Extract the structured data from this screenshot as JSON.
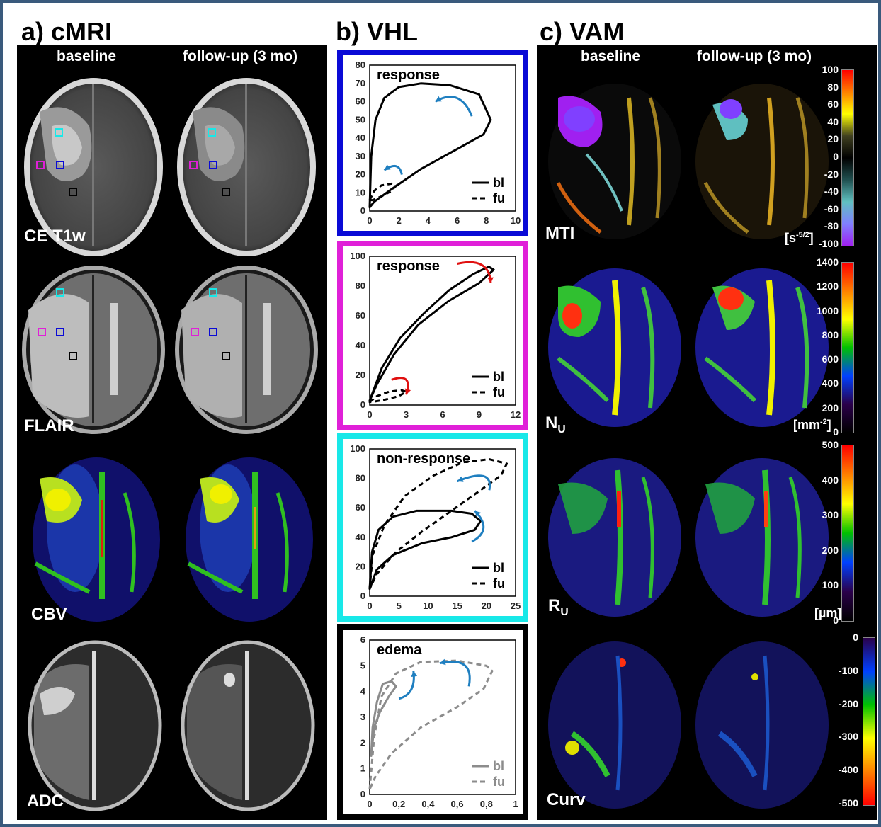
{
  "panels": {
    "a_title": "a) cMRI",
    "b_title": "b) VHL",
    "c_title": "c) VAM"
  },
  "cmri": {
    "col_baseline": "baseline",
    "col_followup": "follow-up (3 mo)",
    "rows": [
      "CE T1w",
      "FLAIR",
      "CBV",
      "ADC"
    ]
  },
  "vam": {
    "col_baseline": "baseline",
    "col_followup": "follow-up (3 mo)",
    "rows": [
      {
        "label": "MTI",
        "sub": "",
        "unit": "[s",
        "unit_sup": "-5/2",
        "unit_end": "]",
        "ticks": [
          "100",
          "80",
          "60",
          "40",
          "20",
          "0",
          "-20",
          "-40",
          "-60",
          "-80",
          "-100"
        ]
      },
      {
        "label": "N",
        "sub": "U",
        "unit": "[mm",
        "unit_sup": "-2",
        "unit_end": "]",
        "ticks": [
          "1400",
          "1200",
          "1000",
          "800",
          "600",
          "400",
          "200",
          "0"
        ]
      },
      {
        "label": "R",
        "sub": "U",
        "unit": "[µm]",
        "unit_sup": "",
        "unit_end": "",
        "ticks": [
          "500",
          "400",
          "300",
          "200",
          "100",
          "0"
        ]
      },
      {
        "label": "Curv",
        "sub": "",
        "unit": "",
        "unit_sup": "",
        "unit_end": "",
        "ticks": [
          "0",
          "-100",
          "-200",
          "-300",
          "-400",
          "-500"
        ]
      }
    ]
  },
  "vhl": {
    "colors": {
      "blue": "#0a0ad6",
      "magenta": "#e020d8",
      "cyan": "#18e8e8",
      "black": "#000000",
      "arrow_blue": "#1f7fc0",
      "arrow_red": "#e01010",
      "grey": "#8c8c8c"
    },
    "legend": {
      "bl": "bl",
      "fu": "fu"
    }
  },
  "chart_data": [
    {
      "type": "line",
      "title": "response",
      "xlim": [
        0,
        10
      ],
      "ylim": [
        0,
        80
      ],
      "xticks": [
        "0",
        "2",
        "4",
        "6",
        "8",
        "10"
      ],
      "yticks": [
        "0",
        "10",
        "20",
        "30",
        "40",
        "50",
        "60",
        "70",
        "80"
      ],
      "series": [
        {
          "name": "bl",
          "style": "solid",
          "points": [
            [
              0,
              2
            ],
            [
              0.1,
              30
            ],
            [
              0.4,
              50
            ],
            [
              1,
              62
            ],
            [
              2,
              68
            ],
            [
              3.5,
              70
            ],
            [
              5.5,
              69
            ],
            [
              7.5,
              64
            ],
            [
              8.3,
              50
            ],
            [
              7.8,
              42
            ],
            [
              6,
              34
            ],
            [
              3.5,
              23
            ],
            [
              1.5,
              12
            ],
            [
              0.3,
              5
            ],
            [
              0,
              2
            ]
          ]
        },
        {
          "name": "fu",
          "style": "dashed",
          "points": [
            [
              0,
              6
            ],
            [
              0.3,
              11
            ],
            [
              0.8,
              14
            ],
            [
              1.5,
              15
            ],
            [
              1.8,
              14
            ],
            [
              1.5,
              11
            ],
            [
              0.8,
              8
            ],
            [
              0.2,
              6
            ],
            [
              0,
              6
            ]
          ]
        }
      ]
    },
    {
      "type": "line",
      "title": "response",
      "xlim": [
        0,
        12
      ],
      "ylim": [
        0,
        100
      ],
      "xticks": [
        "0",
        "3",
        "6",
        "9",
        "12"
      ],
      "yticks": [
        "0",
        "20",
        "40",
        "60",
        "80",
        "100"
      ],
      "series": [
        {
          "name": "bl",
          "style": "solid",
          "points": [
            [
              0,
              3
            ],
            [
              1,
              25
            ],
            [
              2.5,
              45
            ],
            [
              4.5,
              62
            ],
            [
              6.5,
              77
            ],
            [
              8.5,
              88
            ],
            [
              9.8,
              93
            ],
            [
              10.2,
              91
            ],
            [
              9,
              82
            ],
            [
              6.5,
              70
            ],
            [
              4,
              54
            ],
            [
              2,
              34
            ],
            [
              0.6,
              14
            ],
            [
              0,
              3
            ]
          ]
        },
        {
          "name": "fu",
          "style": "dashed",
          "points": [
            [
              0,
              2
            ],
            [
              0.6,
              6
            ],
            [
              1.6,
              9
            ],
            [
              2.6,
              10
            ],
            [
              3,
              9
            ],
            [
              2.4,
              6
            ],
            [
              1.2,
              3.5
            ],
            [
              0.3,
              2.2
            ],
            [
              0,
              2
            ]
          ]
        }
      ]
    },
    {
      "type": "line",
      "title": "non-response",
      "xlim": [
        0,
        25
      ],
      "ylim": [
        0,
        100
      ],
      "xticks": [
        "0",
        "5",
        "10",
        "15",
        "20",
        "25"
      ],
      "yticks": [
        "0",
        "20",
        "40",
        "60",
        "80",
        "100"
      ],
      "series": [
        {
          "name": "bl",
          "style": "solid",
          "points": [
            [
              0,
              5
            ],
            [
              0.4,
              30
            ],
            [
              1.5,
              45
            ],
            [
              4,
              54
            ],
            [
              8,
              58
            ],
            [
              14,
              58
            ],
            [
              17.5,
              56
            ],
            [
              19,
              51
            ],
            [
              18,
              45
            ],
            [
              14,
              40
            ],
            [
              9,
              36
            ],
            [
              4,
              28
            ],
            [
              1.2,
              18
            ],
            [
              0,
              5
            ]
          ]
        },
        {
          "name": "fu",
          "style": "dashed",
          "points": [
            [
              0,
              5
            ],
            [
              0.5,
              28
            ],
            [
              2.5,
              48
            ],
            [
              6,
              68
            ],
            [
              11,
              82
            ],
            [
              16,
              91
            ],
            [
              20.5,
              93
            ],
            [
              23.5,
              90
            ],
            [
              22.5,
              82
            ],
            [
              19,
              72
            ],
            [
              14,
              58
            ],
            [
              9,
              44
            ],
            [
              4.5,
              30
            ],
            [
              1.2,
              15
            ],
            [
              0,
              5
            ]
          ]
        }
      ]
    },
    {
      "type": "line",
      "title": "edema",
      "xlim": [
        0,
        1
      ],
      "ylim": [
        0,
        6
      ],
      "xticks": [
        "0",
        "0,2",
        "0,4",
        "0,6",
        "0,8",
        "1"
      ],
      "yticks": [
        "0",
        "1",
        "2",
        "3",
        "4",
        "5",
        "6"
      ],
      "series": [
        {
          "name": "bl",
          "style": "solid",
          "points": [
            [
              0.01,
              1.5
            ],
            [
              0.02,
              2.6
            ],
            [
              0.05,
              3.6
            ],
            [
              0.09,
              4.3
            ],
            [
              0.15,
              4.4
            ],
            [
              0.18,
              4.2
            ],
            [
              0.13,
              3.8
            ],
            [
              0.07,
              3.2
            ],
            [
              0.03,
              2.6
            ],
            [
              0.01,
              1.5
            ]
          ]
        },
        {
          "name": "fu",
          "style": "dashed",
          "points": [
            [
              0,
              0.2
            ],
            [
              0.03,
              2.2
            ],
            [
              0.08,
              3.8
            ],
            [
              0.18,
              4.7
            ],
            [
              0.35,
              5.15
            ],
            [
              0.6,
              5.2
            ],
            [
              0.8,
              5
            ],
            [
              0.84,
              4.8
            ],
            [
              0.78,
              4.1
            ],
            [
              0.6,
              3.4
            ],
            [
              0.35,
              2.6
            ],
            [
              0.15,
              1.6
            ],
            [
              0.04,
              0.7
            ],
            [
              0,
              0.2
            ]
          ]
        }
      ]
    }
  ]
}
